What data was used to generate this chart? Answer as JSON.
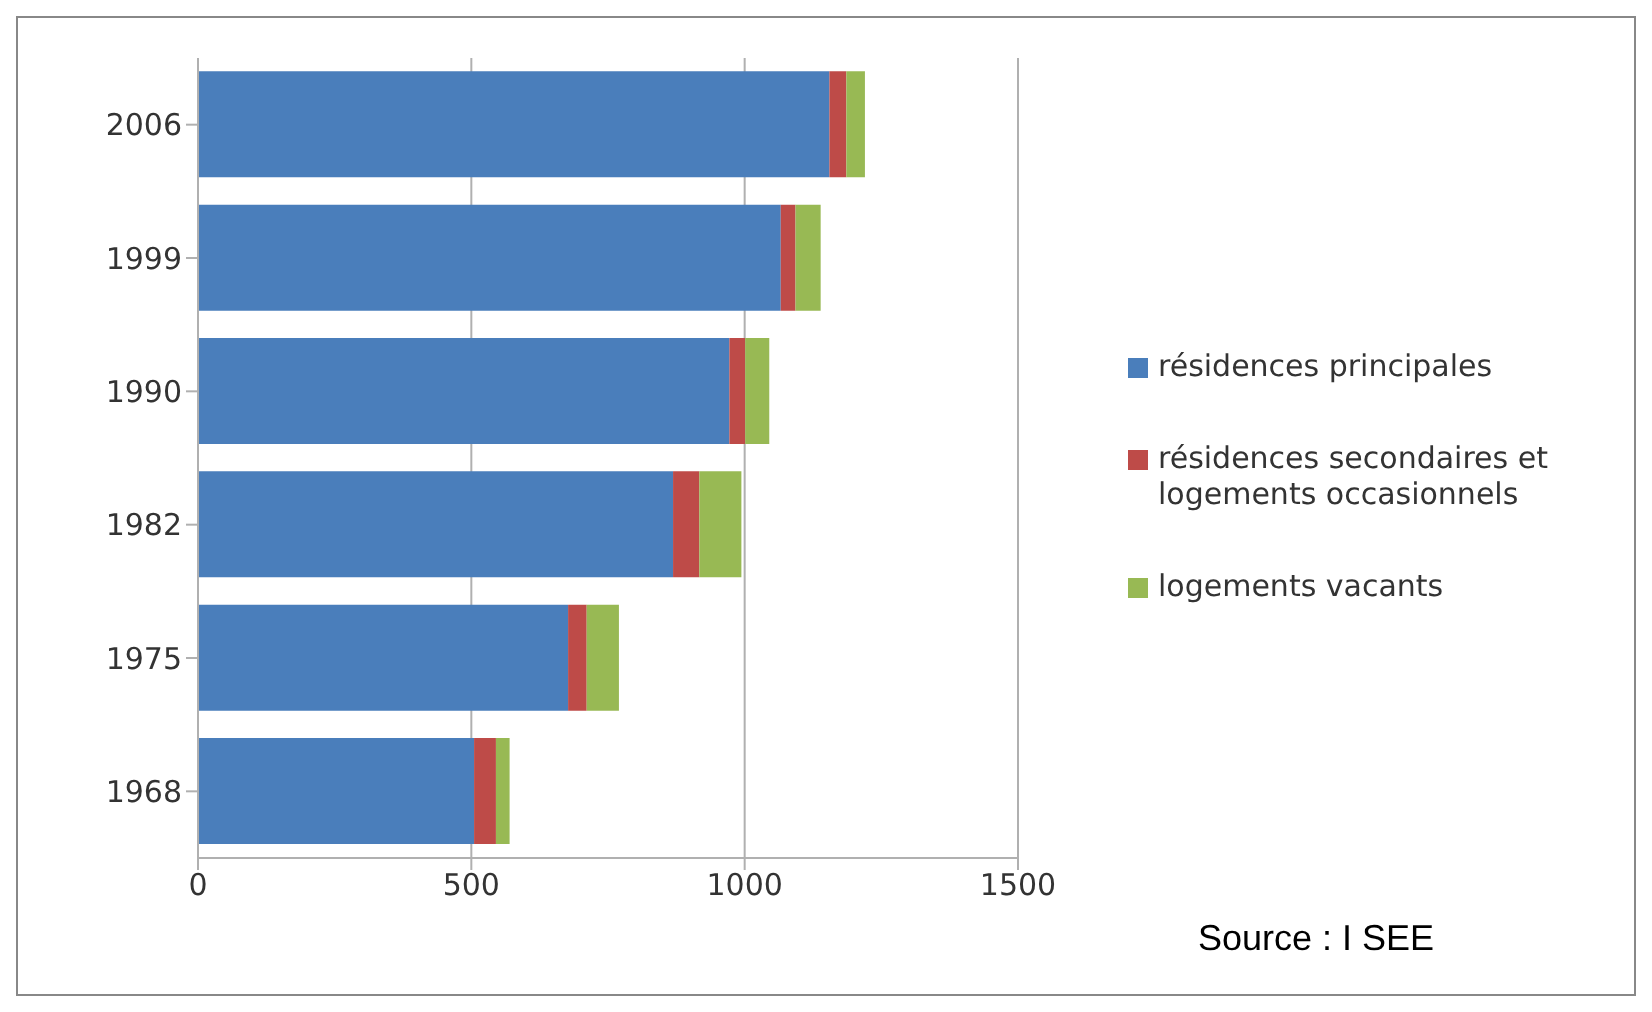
{
  "chart_data": {
    "type": "bar",
    "orientation": "horizontal",
    "stacked": true,
    "categories": [
      "2006",
      "1999",
      "1990",
      "1982",
      "1975",
      "1968"
    ],
    "series": [
      {
        "name": "résidences principales",
        "color": "#4a7ebb",
        "values": [
          1155,
          1066,
          972,
          869,
          677,
          505
        ]
      },
      {
        "name": "résidences secondaires et logements occasionnels",
        "color": "#be4b48",
        "values": [
          31,
          27,
          29,
          48,
          34,
          40
        ]
      },
      {
        "name": "logements vacants",
        "color": "#98b954",
        "values": [
          34,
          46,
          44,
          77,
          59,
          25
        ]
      }
    ],
    "xlim": [
      0,
      1500
    ],
    "xticks": [
      0,
      500,
      1000,
      1500
    ],
    "grid": "x",
    "legend": "right",
    "annotations": [
      "Source : I SEE"
    ]
  }
}
